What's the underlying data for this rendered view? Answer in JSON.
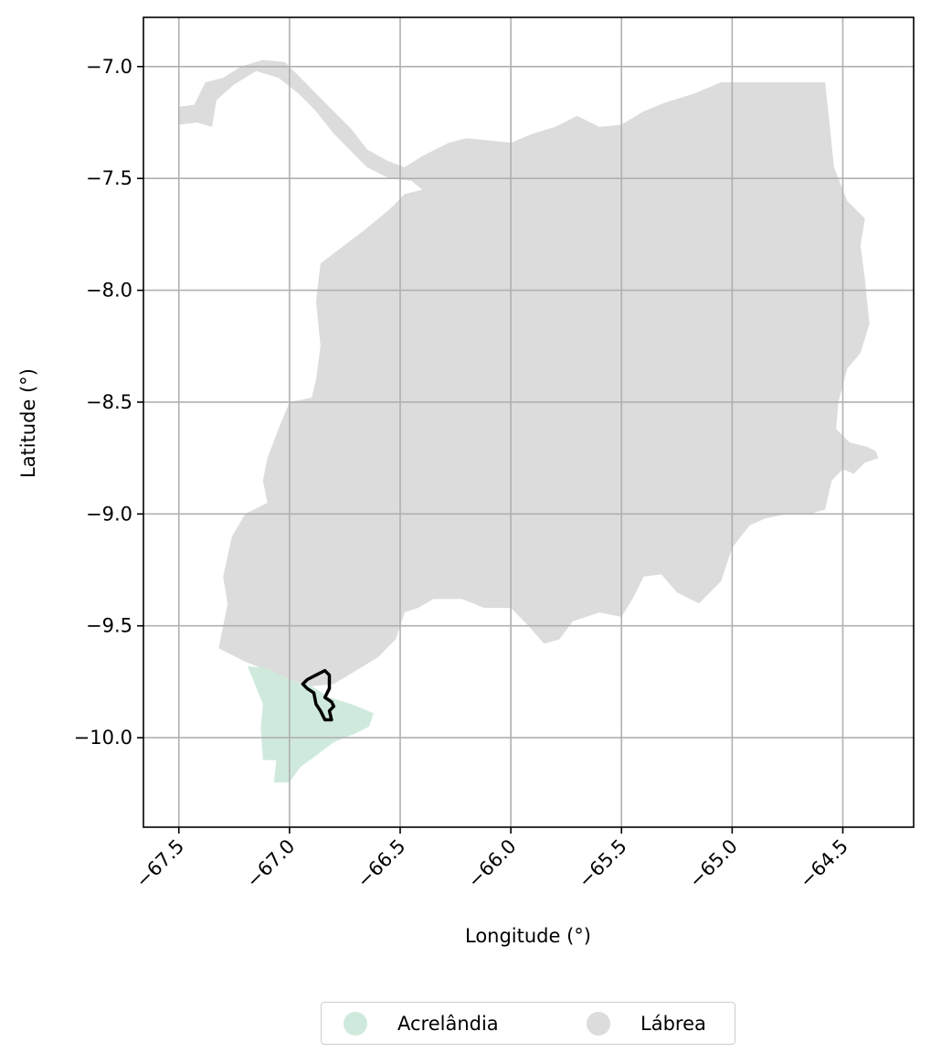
{
  "map": {
    "xlabel": "Longitude (°)",
    "ylabel": "Latitude (°)",
    "x_ticks": [
      {
        "value": -67.5,
        "label": "−67.5"
      },
      {
        "value": -67.0,
        "label": "−67.0"
      },
      {
        "value": -66.5,
        "label": "−66.5"
      },
      {
        "value": -66.0,
        "label": "−66.0"
      },
      {
        "value": -65.5,
        "label": "−65.5"
      },
      {
        "value": -65.0,
        "label": "−65.0"
      },
      {
        "value": -64.5,
        "label": "−64.5"
      }
    ],
    "y_ticks": [
      {
        "value": -7.0,
        "label": "−7.0"
      },
      {
        "value": -7.5,
        "label": "−7.5"
      },
      {
        "value": -8.0,
        "label": "−8.0"
      },
      {
        "value": -8.5,
        "label": "−8.5"
      },
      {
        "value": -9.0,
        "label": "−9.0"
      },
      {
        "value": -9.5,
        "label": "−9.5"
      },
      {
        "value": -10.0,
        "label": "−10.0"
      }
    ],
    "xlim": [
      -67.66,
      -64.18
    ],
    "ylim": [
      -10.4,
      -6.78
    ],
    "grid": true,
    "legend_position": "bottom-center",
    "regions": [
      {
        "name": "Lábrea",
        "color": "#dcdcdc",
        "coords": [
          [
            -67.5,
            -7.18
          ],
          [
            -67.43,
            -7.17
          ],
          [
            -67.38,
            -7.07
          ],
          [
            -67.3,
            -7.05
          ],
          [
            -67.22,
            -7.0
          ],
          [
            -67.12,
            -6.97
          ],
          [
            -67.02,
            -6.98
          ],
          [
            -66.95,
            -7.05
          ],
          [
            -66.88,
            -7.12
          ],
          [
            -66.8,
            -7.2
          ],
          [
            -66.72,
            -7.28
          ],
          [
            -66.65,
            -7.37
          ],
          [
            -66.56,
            -7.42
          ],
          [
            -66.48,
            -7.45
          ],
          [
            -66.4,
            -7.4
          ],
          [
            -66.28,
            -7.34
          ],
          [
            -66.2,
            -7.32
          ],
          [
            -66.1,
            -7.33
          ],
          [
            -66.0,
            -7.34
          ],
          [
            -65.9,
            -7.3
          ],
          [
            -65.8,
            -7.27
          ],
          [
            -65.7,
            -7.22
          ],
          [
            -65.6,
            -7.27
          ],
          [
            -65.5,
            -7.26
          ],
          [
            -65.4,
            -7.2
          ],
          [
            -65.3,
            -7.16
          ],
          [
            -65.17,
            -7.12
          ],
          [
            -65.05,
            -7.07
          ],
          [
            -64.85,
            -7.07
          ],
          [
            -64.58,
            -7.07
          ],
          [
            -64.56,
            -7.25
          ],
          [
            -64.54,
            -7.45
          ],
          [
            -64.48,
            -7.6
          ],
          [
            -64.4,
            -7.68
          ],
          [
            -64.42,
            -7.8
          ],
          [
            -64.4,
            -7.95
          ],
          [
            -64.39,
            -8.05
          ],
          [
            -64.38,
            -8.15
          ],
          [
            -64.42,
            -8.28
          ],
          [
            -64.48,
            -8.35
          ],
          [
            -64.52,
            -8.5
          ],
          [
            -64.53,
            -8.62
          ],
          [
            -64.47,
            -8.68
          ],
          [
            -64.39,
            -8.7
          ],
          [
            -64.35,
            -8.72
          ],
          [
            -64.34,
            -8.75
          ],
          [
            -64.4,
            -8.77
          ],
          [
            -64.45,
            -8.82
          ],
          [
            -64.5,
            -8.8
          ],
          [
            -64.55,
            -8.85
          ],
          [
            -64.58,
            -8.98
          ],
          [
            -64.65,
            -9.0
          ],
          [
            -64.75,
            -9.0
          ],
          [
            -64.85,
            -9.02
          ],
          [
            -64.92,
            -9.05
          ],
          [
            -65.0,
            -9.15
          ],
          [
            -65.05,
            -9.3
          ],
          [
            -65.15,
            -9.4
          ],
          [
            -65.25,
            -9.35
          ],
          [
            -65.32,
            -9.27
          ],
          [
            -65.4,
            -9.28
          ],
          [
            -65.45,
            -9.38
          ],
          [
            -65.5,
            -9.46
          ],
          [
            -65.6,
            -9.44
          ],
          [
            -65.72,
            -9.48
          ],
          [
            -65.78,
            -9.56
          ],
          [
            -65.85,
            -9.58
          ],
          [
            -65.92,
            -9.5
          ],
          [
            -66.0,
            -9.42
          ],
          [
            -66.12,
            -9.42
          ],
          [
            -66.22,
            -9.38
          ],
          [
            -66.35,
            -9.38
          ],
          [
            -66.42,
            -9.42
          ],
          [
            -66.48,
            -9.44
          ],
          [
            -66.52,
            -9.56
          ],
          [
            -66.6,
            -9.64
          ],
          [
            -66.7,
            -9.7
          ],
          [
            -66.8,
            -9.76
          ],
          [
            -66.9,
            -9.77
          ],
          [
            -67.0,
            -9.74
          ],
          [
            -67.1,
            -9.7
          ],
          [
            -67.2,
            -9.66
          ],
          [
            -67.32,
            -9.6
          ],
          [
            -67.28,
            -9.4
          ],
          [
            -67.3,
            -9.28
          ],
          [
            -67.26,
            -9.1
          ],
          [
            -67.2,
            -9.0
          ],
          [
            -67.1,
            -8.95
          ],
          [
            -67.12,
            -8.85
          ],
          [
            -67.1,
            -8.75
          ],
          [
            -67.05,
            -8.62
          ],
          [
            -67.0,
            -8.5
          ],
          [
            -66.9,
            -8.48
          ],
          [
            -66.88,
            -8.4
          ],
          [
            -66.86,
            -8.25
          ],
          [
            -66.88,
            -8.05
          ],
          [
            -66.86,
            -7.88
          ],
          [
            -66.78,
            -7.82
          ],
          [
            -66.66,
            -7.73
          ],
          [
            -66.55,
            -7.64
          ],
          [
            -66.48,
            -7.57
          ],
          [
            -66.4,
            -7.55
          ],
          [
            -66.45,
            -7.51
          ],
          [
            -66.55,
            -7.5
          ],
          [
            -66.65,
            -7.45
          ],
          [
            -66.72,
            -7.38
          ],
          [
            -66.8,
            -7.3
          ],
          [
            -66.88,
            -7.2
          ],
          [
            -66.96,
            -7.12
          ],
          [
            -67.05,
            -7.05
          ],
          [
            -67.15,
            -7.02
          ],
          [
            -67.25,
            -7.08
          ],
          [
            -67.33,
            -7.15
          ],
          [
            -67.35,
            -7.27
          ],
          [
            -67.42,
            -7.25
          ],
          [
            -67.5,
            -7.26
          ]
        ]
      },
      {
        "name": "Acrelândia",
        "color": "#cfeadd",
        "coords": [
          [
            -67.19,
            -9.68
          ],
          [
            -67.1,
            -9.69
          ],
          [
            -67.0,
            -9.74
          ],
          [
            -66.9,
            -9.77
          ],
          [
            -66.82,
            -9.82
          ],
          [
            -66.72,
            -9.85
          ],
          [
            -66.62,
            -9.89
          ],
          [
            -66.64,
            -9.95
          ],
          [
            -66.7,
            -9.98
          ],
          [
            -66.8,
            -10.02
          ],
          [
            -66.88,
            -10.08
          ],
          [
            -66.95,
            -10.13
          ],
          [
            -67.0,
            -10.2
          ],
          [
            -67.07,
            -10.2
          ],
          [
            -67.06,
            -10.1
          ],
          [
            -67.12,
            -10.1
          ],
          [
            -67.13,
            -9.96
          ],
          [
            -67.12,
            -9.85
          ]
        ]
      }
    ],
    "highlight": {
      "color": "#000000",
      "coords": [
        [
          -66.92,
          -9.74
        ],
        [
          -66.88,
          -9.72
        ],
        [
          -66.84,
          -9.7
        ],
        [
          -66.82,
          -9.72
        ],
        [
          -66.82,
          -9.78
        ],
        [
          -66.84,
          -9.82
        ],
        [
          -66.81,
          -9.84
        ],
        [
          -66.8,
          -9.86
        ],
        [
          -66.82,
          -9.88
        ],
        [
          -66.81,
          -9.92
        ],
        [
          -66.84,
          -9.92
        ],
        [
          -66.86,
          -9.88
        ],
        [
          -66.88,
          -9.85
        ],
        [
          -66.89,
          -9.8
        ],
        [
          -66.92,
          -9.78
        ],
        [
          -66.94,
          -9.76
        ]
      ]
    }
  },
  "legend": {
    "items": [
      {
        "label": "Acrelândia",
        "color": "#cfeadd"
      },
      {
        "label": "Lábrea",
        "color": "#dcdcdc"
      }
    ]
  }
}
